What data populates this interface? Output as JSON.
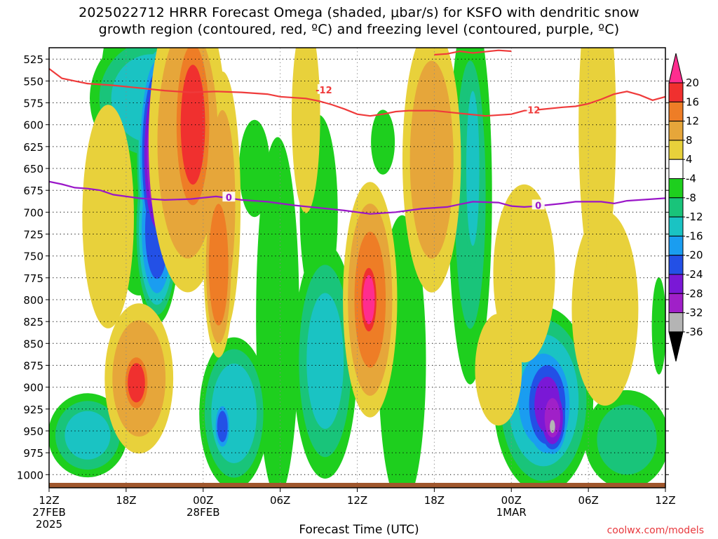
{
  "chart_data": {
    "type": "heatmap",
    "title_line1": "2025022712 HRRR Forecast Omega (shaded, μbar/s) for KSFO with dendritic snow",
    "title_line2": "growth region (contoured, red, ºC) and freezing level (contoured, purple, ºC)",
    "xlabel": "Forecast Time (UTC)",
    "ylabel": "",
    "y_ticks": [
      525,
      550,
      575,
      600,
      625,
      650,
      675,
      700,
      725,
      750,
      775,
      800,
      825,
      850,
      875,
      900,
      925,
      950,
      975,
      1000
    ],
    "ylim": [
      1015,
      512
    ],
    "xlim": [
      0,
      48
    ],
    "x_ticks": [
      {
        "t": 0,
        "label": "12Z",
        "sub": "27FEB",
        "sub2": "2025"
      },
      {
        "t": 6,
        "label": "18Z"
      },
      {
        "t": 12,
        "label": "00Z",
        "sub": "28FEB"
      },
      {
        "t": 18,
        "label": "06Z"
      },
      {
        "t": 24,
        "label": "12Z"
      },
      {
        "t": 30,
        "label": "18Z"
      },
      {
        "t": 36,
        "label": "00Z",
        "sub": "1MAR"
      },
      {
        "t": 42,
        "label": "06Z"
      },
      {
        "t": 48,
        "label": "12Z"
      }
    ],
    "colorbar": {
      "labels": [
        20,
        16,
        12,
        8,
        4,
        -4,
        -8,
        -12,
        -16,
        -20,
        -24,
        -28,
        -32,
        -36
      ],
      "colors": [
        "#ff2d8f",
        "#f0302f",
        "#ee7d26",
        "#e6a63a",
        "#e8d13b",
        "#ffffff",
        "#1ecf1e",
        "#19c47a",
        "#1ac3c3",
        "#1a9df0",
        "#2350e6",
        "#7a18d6",
        "#a020c8",
        "#b4b4b4",
        "#000000"
      ]
    },
    "dgz_contour": {
      "label": "-12",
      "color": "#ef3b3b",
      "points": [
        [
          0,
          536
        ],
        [
          1,
          547
        ],
        [
          2,
          550
        ],
        [
          3,
          553
        ],
        [
          5,
          555
        ],
        [
          7,
          558
        ],
        [
          9,
          561
        ],
        [
          11,
          563
        ],
        [
          13,
          562
        ],
        [
          15,
          563
        ],
        [
          17,
          565
        ],
        [
          18,
          568
        ],
        [
          20,
          570
        ],
        [
          21,
          573
        ],
        [
          22,
          577
        ],
        [
          23,
          582
        ],
        [
          24,
          588
        ],
        [
          25,
          590
        ],
        [
          26,
          588
        ],
        [
          27,
          585
        ],
        [
          28,
          584
        ],
        [
          30,
          584
        ],
        [
          32,
          587
        ],
        [
          34,
          590
        ],
        [
          36,
          588
        ],
        [
          37,
          584
        ],
        [
          38,
          583
        ],
        [
          40,
          580
        ],
        [
          41,
          579
        ],
        [
          42,
          576
        ],
        [
          43,
          571
        ],
        [
          44,
          565
        ],
        [
          45,
          562
        ],
        [
          46,
          566
        ],
        [
          47,
          572
        ],
        [
          48,
          568
        ]
      ]
    },
    "upper_dgz_contour": {
      "points": [
        [
          30,
          520
        ],
        [
          31,
          519
        ],
        [
          32,
          516
        ],
        [
          33,
          518
        ],
        [
          35,
          515
        ],
        [
          36,
          516
        ]
      ]
    },
    "freezing_level": {
      "label": "0",
      "color": "#9a16c8",
      "points": [
        [
          0,
          665
        ],
        [
          1,
          668
        ],
        [
          2,
          672
        ],
        [
          3,
          673
        ],
        [
          4,
          675
        ],
        [
          5,
          680
        ],
        [
          6,
          682
        ],
        [
          7,
          684
        ],
        [
          9,
          686
        ],
        [
          11,
          685
        ],
        [
          13,
          682
        ],
        [
          15,
          686
        ],
        [
          17,
          688
        ],
        [
          19,
          692
        ],
        [
          21,
          695
        ],
        [
          23,
          698
        ],
        [
          24,
          700
        ],
        [
          25,
          702
        ],
        [
          27,
          700
        ],
        [
          29,
          696
        ],
        [
          31,
          694
        ],
        [
          32,
          691
        ],
        [
          33,
          688
        ],
        [
          35,
          689
        ],
        [
          36,
          693
        ],
        [
          37,
          694
        ],
        [
          38,
          693
        ],
        [
          40,
          690
        ],
        [
          41,
          688
        ],
        [
          43,
          688
        ],
        [
          44,
          690
        ],
        [
          45,
          687
        ],
        [
          46,
          686
        ],
        [
          48,
          684
        ]
      ]
    },
    "shading_blobs": [
      {
        "t": 10.8,
        "p": 620,
        "rt": 3.2,
        "rp": 180,
        "v": 10
      },
      {
        "t": 11.2,
        "p": 600,
        "rt": 1.8,
        "rp": 130,
        "v": 17
      },
      {
        "t": 13.5,
        "p": 690,
        "rt": 1.5,
        "rp": 160,
        "v": 8
      },
      {
        "t": 13.2,
        "p": 760,
        "rt": 1.2,
        "rp": 110,
        "v": 14
      },
      {
        "t": 7.0,
        "p": 890,
        "rt": 2.8,
        "rp": 90,
        "v": 10
      },
      {
        "t": 6.8,
        "p": 895,
        "rt": 1.2,
        "rp": 40,
        "v": 18
      },
      {
        "t": 25.0,
        "p": 800,
        "rt": 2.2,
        "rp": 140,
        "v": 12
      },
      {
        "t": 24.9,
        "p": 800,
        "rt": 0.9,
        "rp": 55,
        "v": 22
      },
      {
        "t": 29.8,
        "p": 640,
        "rt": 2.4,
        "rp": 160,
        "v": 9
      },
      {
        "t": 20.0,
        "p": 590,
        "rt": 1.2,
        "rp": 120,
        "v": 6
      },
      {
        "t": 4.6,
        "p": 705,
        "rt": 2.2,
        "rp": 140,
        "v": 5
      },
      {
        "t": 43.3,
        "p": 810,
        "rt": 2.8,
        "rp": 120,
        "v": 6
      },
      {
        "t": 37.0,
        "p": 770,
        "rt": 2.6,
        "rp": 110,
        "v": 6
      },
      {
        "t": 42.7,
        "p": 600,
        "rt": 1.6,
        "rp": 200,
        "v": 5
      },
      {
        "t": 35.0,
        "p": 880,
        "rt": 2.0,
        "rp": 70,
        "v": 5
      },
      {
        "t": 8.0,
        "p": 570,
        "rt": 5.0,
        "rp": 80,
        "v": -14
      },
      {
        "t": 8.5,
        "p": 635,
        "rt": 1.8,
        "rp": 140,
        "v": -32
      },
      {
        "t": 8.4,
        "p": 720,
        "rt": 1.8,
        "rp": 110,
        "v": -22
      },
      {
        "t": 7.0,
        "p": 610,
        "rt": 3.5,
        "rp": 200,
        "v": -6
      },
      {
        "t": 14.4,
        "p": 930,
        "rt": 2.8,
        "rp": 90,
        "v": -14
      },
      {
        "t": 13.5,
        "p": 945,
        "rt": 0.8,
        "rp": 35,
        "v": -22
      },
      {
        "t": 3.0,
        "p": 955,
        "rt": 3.2,
        "rp": 50,
        "v": -12
      },
      {
        "t": 21.5,
        "p": 870,
        "rt": 2.6,
        "rp": 140,
        "v": -12
      },
      {
        "t": 17.8,
        "p": 820,
        "rt": 1.8,
        "rp": 220,
        "v": -7
      },
      {
        "t": 27.5,
        "p": 870,
        "rt": 2.0,
        "rp": 180,
        "v": -6
      },
      {
        "t": 32.8,
        "p": 680,
        "rt": 1.8,
        "rp": 230,
        "v": -8
      },
      {
        "t": 33.0,
        "p": 650,
        "rt": 0.8,
        "rp": 140,
        "v": -14
      },
      {
        "t": 38.5,
        "p": 915,
        "rt": 4.0,
        "rp": 110,
        "v": -16
      },
      {
        "t": 38.8,
        "p": 920,
        "rt": 2.5,
        "rp": 80,
        "v": -24
      },
      {
        "t": 39.2,
        "p": 935,
        "rt": 1.5,
        "rp": 55,
        "v": -29
      },
      {
        "t": 39.2,
        "p": 945,
        "rt": 0.5,
        "rp": 18,
        "v": -34
      },
      {
        "t": 45.0,
        "p": 960,
        "rt": 3.5,
        "rp": 60,
        "v": -8
      },
      {
        "t": 21.0,
        "p": 700,
        "rt": 1.6,
        "rp": 120,
        "v": -6
      },
      {
        "t": 26.0,
        "p": 620,
        "rt": 1.0,
        "rp": 40,
        "v": -6
      },
      {
        "t": 16.0,
        "p": 650,
        "rt": 1.3,
        "rp": 60,
        "v": -6
      },
      {
        "t": 47.5,
        "p": 830,
        "rt": 0.6,
        "rp": 60,
        "v": -6
      }
    ],
    "shading_colors": {
      "pos": [
        "#e8d13b",
        "#e6a63a",
        "#ee7d26",
        "#f0302f",
        "#ff2d8f"
      ],
      "neg": [
        "#1ecf1e",
        "#19c47a",
        "#1ac3c3",
        "#1a9df0",
        "#2350e6",
        "#7a18d6",
        "#a020c8",
        "#b4b4b4"
      ]
    },
    "terrain_color": "#a0572c",
    "watermark": "coolwx.com/models"
  }
}
